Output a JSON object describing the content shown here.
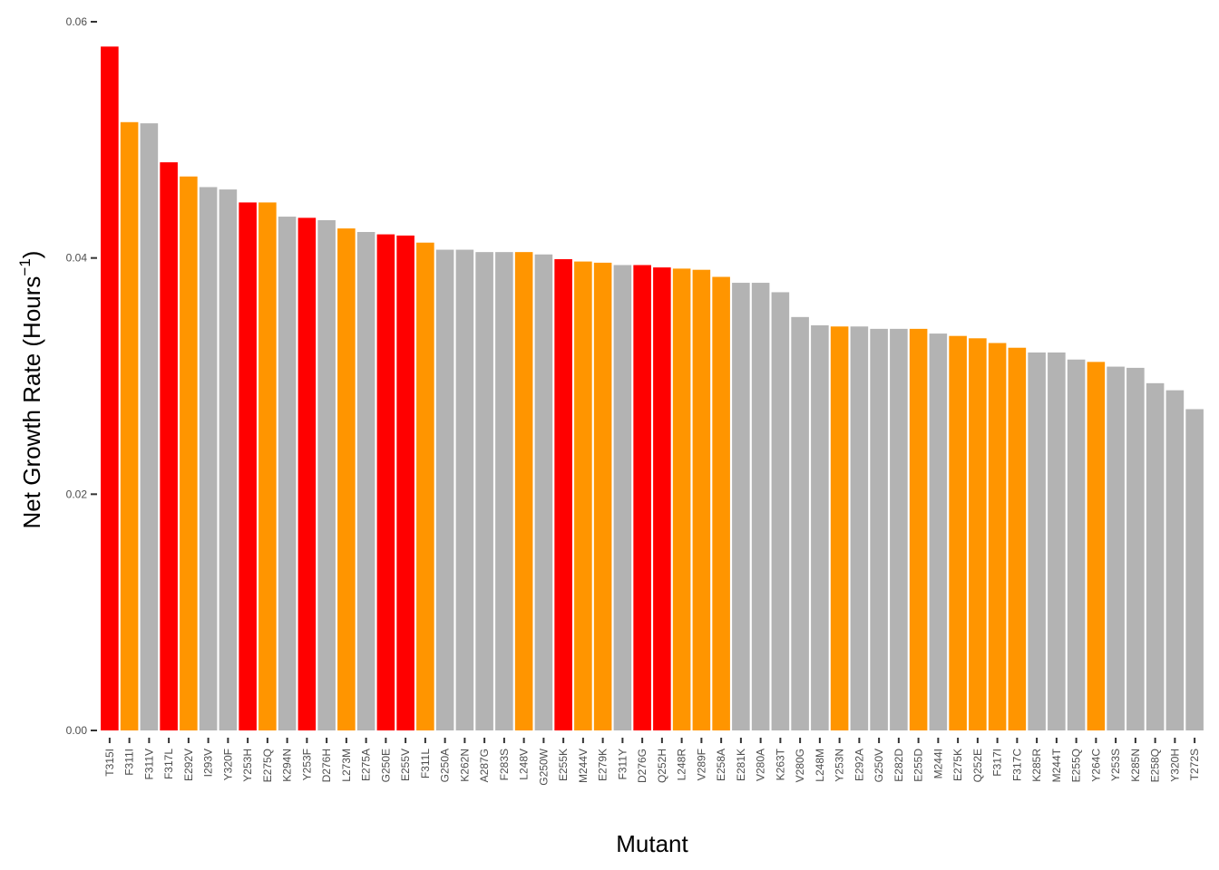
{
  "chart_data": {
    "type": "bar",
    "xlabel": "Mutant",
    "ylabel_main": "Net Growth Rate (Hours",
    "ylabel_sup": "−1",
    "ylabel_close": ")",
    "ylim": [
      0,
      0.06
    ],
    "yticks": [
      "0.00",
      "0.02",
      "0.04",
      "0.06"
    ],
    "grid": false,
    "legend": "none",
    "colors": {
      "red": "#ff0000",
      "orange": "#ff9500",
      "gray": "#b3b3b3",
      "axis": "#333333"
    },
    "bars": [
      {
        "label": "T315I",
        "value": 0.0579,
        "color": "red"
      },
      {
        "label": "F311I",
        "value": 0.0515,
        "color": "orange"
      },
      {
        "label": "F311V",
        "value": 0.0514,
        "color": "gray"
      },
      {
        "label": "F317L",
        "value": 0.0481,
        "color": "red"
      },
      {
        "label": "E292V",
        "value": 0.0469,
        "color": "orange"
      },
      {
        "label": "I293V",
        "value": 0.046,
        "color": "gray"
      },
      {
        "label": "Y320F",
        "value": 0.0458,
        "color": "gray"
      },
      {
        "label": "Y253H",
        "value": 0.0447,
        "color": "red"
      },
      {
        "label": "E275Q",
        "value": 0.0447,
        "color": "orange"
      },
      {
        "label": "K294N",
        "value": 0.0435,
        "color": "gray"
      },
      {
        "label": "Y253F",
        "value": 0.0434,
        "color": "red"
      },
      {
        "label": "D276H",
        "value": 0.0432,
        "color": "gray"
      },
      {
        "label": "L273M",
        "value": 0.0425,
        "color": "orange"
      },
      {
        "label": "E275A",
        "value": 0.0422,
        "color": "gray"
      },
      {
        "label": "G250E",
        "value": 0.042,
        "color": "red"
      },
      {
        "label": "E255V",
        "value": 0.0419,
        "color": "red"
      },
      {
        "label": "F311L",
        "value": 0.0413,
        "color": "orange"
      },
      {
        "label": "G250A",
        "value": 0.0407,
        "color": "gray"
      },
      {
        "label": "K262N",
        "value": 0.0407,
        "color": "gray"
      },
      {
        "label": "A287G",
        "value": 0.0405,
        "color": "gray"
      },
      {
        "label": "F283S",
        "value": 0.0405,
        "color": "gray"
      },
      {
        "label": "L248V",
        "value": 0.0405,
        "color": "orange"
      },
      {
        "label": "G250W",
        "value": 0.0403,
        "color": "gray"
      },
      {
        "label": "E255K",
        "value": 0.0399,
        "color": "red"
      },
      {
        "label": "M244V",
        "value": 0.0397,
        "color": "orange"
      },
      {
        "label": "E279K",
        "value": 0.0396,
        "color": "orange"
      },
      {
        "label": "F311Y",
        "value": 0.0394,
        "color": "gray"
      },
      {
        "label": "D276G",
        "value": 0.0394,
        "color": "red"
      },
      {
        "label": "Q252H",
        "value": 0.0392,
        "color": "red"
      },
      {
        "label": "L248R",
        "value": 0.0391,
        "color": "orange"
      },
      {
        "label": "V289F",
        "value": 0.039,
        "color": "orange"
      },
      {
        "label": "E258A",
        "value": 0.0384,
        "color": "orange"
      },
      {
        "label": "E281K",
        "value": 0.0379,
        "color": "gray"
      },
      {
        "label": "V280A",
        "value": 0.0379,
        "color": "gray"
      },
      {
        "label": "K263T",
        "value": 0.0371,
        "color": "gray"
      },
      {
        "label": "V280G",
        "value": 0.035,
        "color": "gray"
      },
      {
        "label": "L248M",
        "value": 0.0343,
        "color": "gray"
      },
      {
        "label": "Y253N",
        "value": 0.0342,
        "color": "orange"
      },
      {
        "label": "E292A",
        "value": 0.0342,
        "color": "gray"
      },
      {
        "label": "G250V",
        "value": 0.034,
        "color": "gray"
      },
      {
        "label": "E282D",
        "value": 0.034,
        "color": "gray"
      },
      {
        "label": "E255D",
        "value": 0.034,
        "color": "orange"
      },
      {
        "label": "M244I",
        "value": 0.0336,
        "color": "gray"
      },
      {
        "label": "E275K",
        "value": 0.0334,
        "color": "orange"
      },
      {
        "label": "Q252E",
        "value": 0.0332,
        "color": "orange"
      },
      {
        "label": "F317I",
        "value": 0.0328,
        "color": "orange"
      },
      {
        "label": "F317C",
        "value": 0.0324,
        "color": "orange"
      },
      {
        "label": "K285R",
        "value": 0.032,
        "color": "gray"
      },
      {
        "label": "M244T",
        "value": 0.032,
        "color": "gray"
      },
      {
        "label": "E255Q",
        "value": 0.0314,
        "color": "gray"
      },
      {
        "label": "Y264C",
        "value": 0.0312,
        "color": "orange"
      },
      {
        "label": "Y253S",
        "value": 0.0308,
        "color": "gray"
      },
      {
        "label": "K285N",
        "value": 0.0307,
        "color": "gray"
      },
      {
        "label": "E258Q",
        "value": 0.0294,
        "color": "gray"
      },
      {
        "label": "Y320H",
        "value": 0.0288,
        "color": "gray"
      },
      {
        "label": "T272S",
        "value": 0.0272,
        "color": "gray"
      }
    ]
  }
}
